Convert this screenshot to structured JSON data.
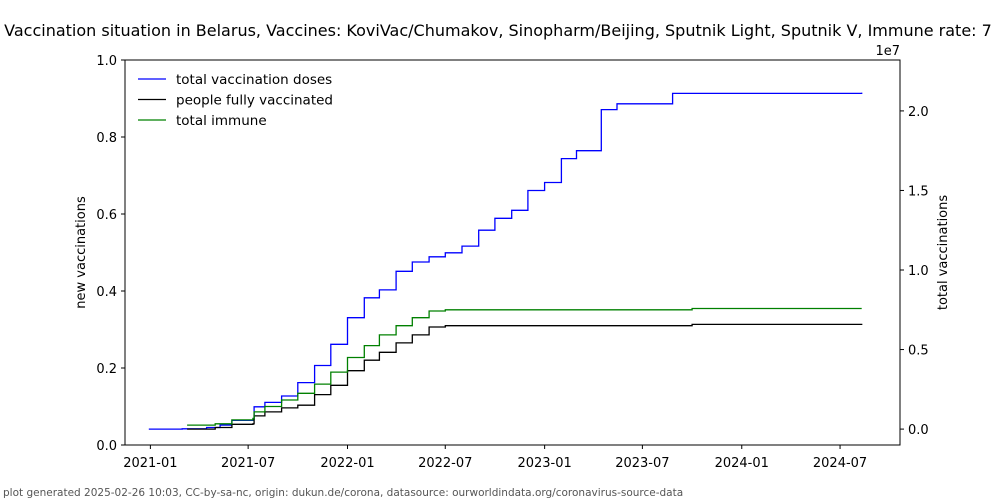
{
  "chart_data": {
    "type": "line",
    "title": "Vaccination situation in Belarus, Vaccines: KoviVac/Chumakov, Sinopharm/Beijing, Sputnik Light, Sputnik V, Immune rate: 7",
    "ylabel_left": "new vaccinations",
    "ylabel_right": "total vaccinations",
    "right_axis_offset_label": "1e7",
    "left_ylim": [
      0,
      1
    ],
    "left_yticks": [
      "0.0",
      "0.2",
      "0.4",
      "0.6",
      "0.8",
      "1.0"
    ],
    "right_ylim": [
      -1000000,
      23200000
    ],
    "right_yticks": [
      {
        "value": 0,
        "label": "0.0"
      },
      {
        "value": 5000000,
        "label": "0.5"
      },
      {
        "value": 10000000,
        "label": "1.0"
      },
      {
        "value": 15000000,
        "label": "1.5"
      },
      {
        "value": 20000000,
        "label": "2.0"
      }
    ],
    "xlim": [
      "2020-11-15",
      "2024-10-20"
    ],
    "xticks": [
      "2021-01",
      "2021-07",
      "2022-01",
      "2022-07",
      "2023-01",
      "2023-07",
      "2024-01",
      "2024-07"
    ],
    "grid": false,
    "legend_position": "top-left",
    "series": [
      {
        "name": "total vaccination doses",
        "color": "#0000ff",
        "points": [
          [
            "2020-12-29",
            0
          ],
          [
            "2021-03-01",
            20000
          ],
          [
            "2021-04-15",
            100000
          ],
          [
            "2021-05-10",
            250000
          ],
          [
            "2021-06-01",
            550000
          ],
          [
            "2021-07-10",
            650000
          ],
          [
            "2021-07-12",
            1400000
          ],
          [
            "2021-08-01",
            1680000
          ],
          [
            "2021-09-01",
            2080000
          ],
          [
            "2021-10-01",
            2920000
          ],
          [
            "2021-11-01",
            4000000
          ],
          [
            "2021-12-01",
            5330000
          ],
          [
            "2022-01-01",
            7000000
          ],
          [
            "2022-02-01",
            8250000
          ],
          [
            "2022-03-01",
            8750000
          ],
          [
            "2022-04-01",
            9920000
          ],
          [
            "2022-05-01",
            10500000
          ],
          [
            "2022-06-01",
            10830000
          ],
          [
            "2022-07-01",
            11080000
          ],
          [
            "2022-08-01",
            11500000
          ],
          [
            "2022-09-01",
            12500000
          ],
          [
            "2022-10-01",
            13250000
          ],
          [
            "2022-11-01",
            13750000
          ],
          [
            "2022-12-01",
            15000000
          ],
          [
            "2023-01-01",
            15500000
          ],
          [
            "2023-02-01",
            17000000
          ],
          [
            "2023-03-01",
            17500000
          ],
          [
            "2023-04-15",
            17500000
          ],
          [
            "2023-04-16",
            20080000
          ],
          [
            "2023-05-15",
            20450000
          ],
          [
            "2023-08-25",
            20450000
          ],
          [
            "2023-08-26",
            21100000
          ],
          [
            "2024-08-10",
            21150000
          ]
        ]
      },
      {
        "name": "people fully vaccinated",
        "color": "#000000",
        "points": [
          [
            "2021-03-10",
            0
          ],
          [
            "2021-05-01",
            100000
          ],
          [
            "2021-06-01",
            300000
          ],
          [
            "2021-07-10",
            330000
          ],
          [
            "2021-07-12",
            830000
          ],
          [
            "2021-08-01",
            1080000
          ],
          [
            "2021-09-01",
            1330000
          ],
          [
            "2021-10-01",
            1500000
          ],
          [
            "2021-11-01",
            2170000
          ],
          [
            "2021-12-01",
            2750000
          ],
          [
            "2022-01-01",
            3670000
          ],
          [
            "2022-02-01",
            4330000
          ],
          [
            "2022-03-01",
            4830000
          ],
          [
            "2022-04-01",
            5420000
          ],
          [
            "2022-05-01",
            5920000
          ],
          [
            "2022-06-01",
            6420000
          ],
          [
            "2022-07-01",
            6500000
          ],
          [
            "2023-04-01",
            6500000
          ],
          [
            "2023-10-01",
            6580000
          ],
          [
            "2024-08-10",
            6620000
          ]
        ]
      },
      {
        "name": "total immune",
        "color": "#008000",
        "points": [
          [
            "2021-03-10",
            250000
          ],
          [
            "2021-05-01",
            330000
          ],
          [
            "2021-06-01",
            580000
          ],
          [
            "2021-07-10",
            670000
          ],
          [
            "2021-07-12",
            1080000
          ],
          [
            "2021-08-01",
            1420000
          ],
          [
            "2021-09-01",
            1830000
          ],
          [
            "2021-10-01",
            2250000
          ],
          [
            "2021-11-01",
            2830000
          ],
          [
            "2021-12-01",
            3580000
          ],
          [
            "2022-01-01",
            4500000
          ],
          [
            "2022-02-01",
            5250000
          ],
          [
            "2022-03-01",
            5920000
          ],
          [
            "2022-04-01",
            6500000
          ],
          [
            "2022-05-01",
            7000000
          ],
          [
            "2022-06-01",
            7420000
          ],
          [
            "2022-07-01",
            7500000
          ],
          [
            "2023-04-01",
            7500000
          ],
          [
            "2023-10-01",
            7580000
          ],
          [
            "2024-08-10",
            7580000
          ]
        ]
      }
    ]
  },
  "footer": "plot generated 2025-02-26 10:03, CC-by-sa-nc, origin: dukun.de/corona, datasource: ourworldindata.org/coronavirus-source-data"
}
